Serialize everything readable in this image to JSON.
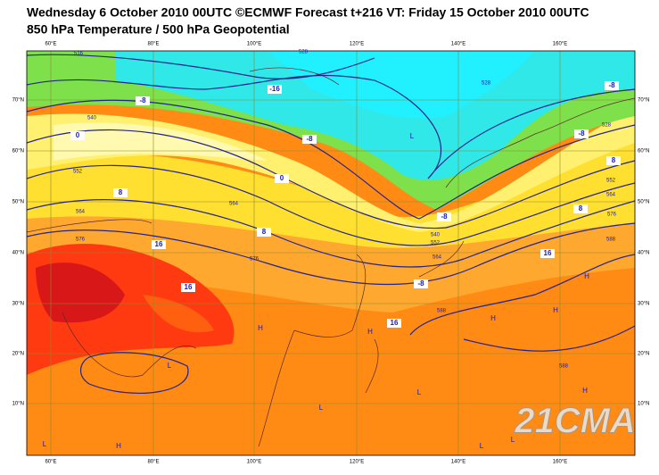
{
  "header": {
    "title": "Wednesday 6 October 2010 00UTC ©ECMWF Forecast t+216 VT: Friday 15 October 2010 00UTC",
    "subtitle": "850 hPa Temperature / 500 hPa Geopotential"
  },
  "map": {
    "lon_labels": [
      "60°E",
      "80°E",
      "100°E",
      "120°E",
      "140°E",
      "160°E"
    ],
    "lat_labels": [
      "70°N",
      "60°N",
      "50°N",
      "40°N",
      "30°N",
      "20°N",
      "10°N"
    ],
    "temperature_labels": [
      "-16",
      "-8",
      "-8",
      "-8",
      "-8",
      "0",
      "0",
      "8",
      "8",
      "8",
      "8",
      "16",
      "16",
      "16",
      "16",
      "-8",
      "-8"
    ],
    "geopotential_labels": [
      "516",
      "528",
      "528",
      "528",
      "540",
      "552",
      "564",
      "576",
      "564",
      "576",
      "540",
      "552",
      "564",
      "552",
      "564",
      "576",
      "588",
      "588",
      "588"
    ],
    "pressure_centers": [
      "L",
      "L",
      "L",
      "L",
      "L",
      "L",
      "L",
      "H",
      "H",
      "H",
      "H",
      "H",
      "H",
      "H"
    ],
    "watermark": "21CMA"
  }
}
